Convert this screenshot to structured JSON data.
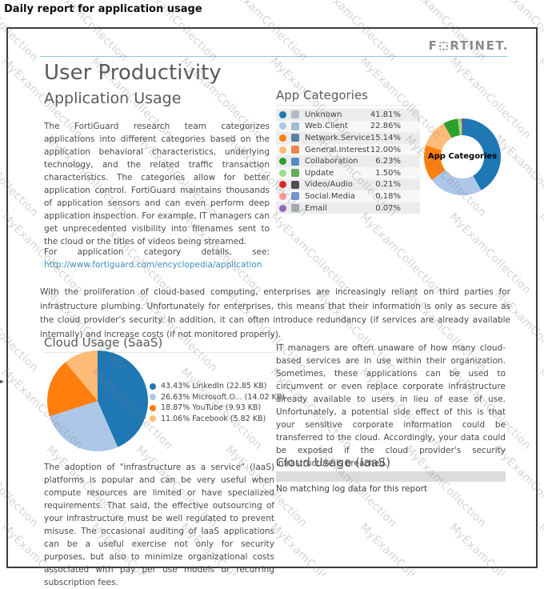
{
  "page_title": "Daily report for application usage",
  "watermark": {
    "text": "MyExamCollection"
  },
  "brand": {
    "logo_left": "F",
    "logo_right": "RTINET."
  },
  "report": {
    "section_title": "User Productivity",
    "subsection_title": "Application Usage",
    "intro_paragraph": "The FortiGuard research team categorizes applications into different categories based on the application behavioral characteristics, underlying technology, and the related traffic transaction characteristics. The categories allow for better application control. FortiGuard maintains thousands of application sensors and can even perform deep application inspection. For example, IT managers can get unprecedented visibility into filenames sent to the cloud or the titles of videos being streamed.",
    "link_lead": "For application category details, see:",
    "link_url": "http://www.fortiguard.com/encyclopedia/application",
    "cloud_paragraph": "With the proliferation of cloud-based computing, enterprises are increasingly reliant on third parties for infrastructure plumbing. Unfortunately for enterprises, this means that their information is only as secure as the cloud provider's security. In addition, it can often introduce redundancy (if services are already available internally) and increase costs (if not monitored properly).",
    "saas_right_paragraph": "IT managers are often unaware of how many cloud-based services are in use within their organization. Sometimes, these applications can be used to circumvent or even replace corporate infrastructure already available to users in lieu of ease of use. Unfortunately, a potential side effect of this is that your sensitive corporate information could be transferred to the cloud. Accordingly, your data could be exposed if the cloud provider's security infrastructure is breached.",
    "iaas_paragraph": "The adoption of \"infrastructure as a service\" (IaaS) platforms is popular and can be very useful when compute resources are limited or have specialized requirements. That said, the effective outsourcing of your infrastructure must be well regulated to prevent misuse. The occasional auditing of IaaS applications can be a useful exercise not only for security purposes, but also to minimize organizational costs associated with pay per use models or recurring subscription fees.",
    "iaas_heading": "Cloud Usage (IaaS)",
    "iaas_empty_message": "No matching log data for this report"
  },
  "chart_data": [
    {
      "type": "pie",
      "subtype": "donut",
      "title": "App Categories",
      "center_label": "App Categories",
      "legend_position": "left-table",
      "unit": "percent",
      "slices": [
        {
          "label": "Unknown",
          "value": 41.81,
          "pct_label": "41.81%",
          "color": "#1f77b4",
          "icon_color": "#a9b2ba"
        },
        {
          "label": "Web.Client",
          "value": 22.86,
          "pct_label": "22.86%",
          "color": "#aec7e8",
          "icon_color": "#8fb3cf"
        },
        {
          "label": "Network.Service",
          "value": 15.14,
          "pct_label": "15.14%",
          "color": "#ff7f0e",
          "icon_color": "#3d6e99"
        },
        {
          "label": "General.Interest",
          "value": 12.0,
          "pct_label": "12.00%",
          "color": "#ffbb78",
          "icon_color": "#e8742b"
        },
        {
          "label": "Collaboration",
          "value": 6.23,
          "pct_label": "6.23%",
          "color": "#2ca02c",
          "icon_color": "#3b79c0"
        },
        {
          "label": "Update",
          "value": 1.5,
          "pct_label": "1.50%",
          "color": "#98df8a",
          "icon_color": "#4d9e44"
        },
        {
          "label": "Video/Audio",
          "value": 0.21,
          "pct_label": "0.21%",
          "color": "#d62728",
          "icon_color": "#333333"
        },
        {
          "label": "Social.Media",
          "value": 0.18,
          "pct_label": "0.18%",
          "color": "#ff9896",
          "icon_color": "#5d86c2"
        },
        {
          "label": "Email",
          "value": 0.07,
          "pct_label": "0.07%",
          "color": "#9467bd",
          "icon_color": "#9aa3ab"
        }
      ]
    },
    {
      "type": "pie",
      "title": "Cloud Usage (SaaS)",
      "legend_position": "right",
      "unit": "percent",
      "slices": [
        {
          "label": "LinkedIn",
          "value": 43.43,
          "size": "22.85 KB",
          "legend": "43.43% LinkedIn (22.85 KB)",
          "color": "#1f77b4"
        },
        {
          "label": "Microsoft.O...",
          "value": 26.63,
          "size": "14.02 KB",
          "legend": "26.63% Microsoft.O... (14.02 KB)",
          "color": "#aec7e8"
        },
        {
          "label": "YouTube",
          "value": 18.87,
          "size": "9.93 KB",
          "legend": "18.87% YouTube (9.93 KB)",
          "color": "#ff7f0e"
        },
        {
          "label": "Facebook",
          "value": 11.06,
          "size": "5.82 KB",
          "legend": "11.06% Facebook (5.82 KB)",
          "color": "#ffbb78"
        }
      ]
    }
  ]
}
